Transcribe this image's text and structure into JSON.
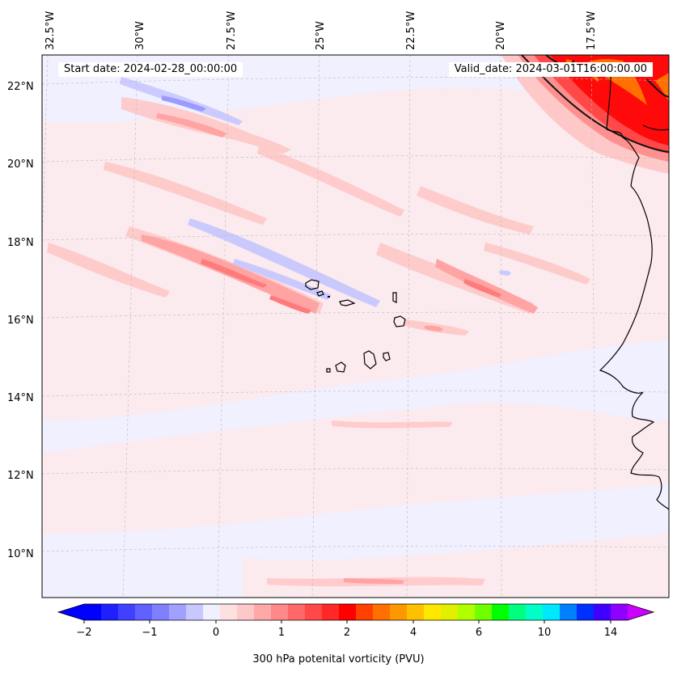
{
  "header": {
    "start_date": "Start date: 2024-02-28_00:00:00",
    "valid_date": "Valid_date: 2024-03-01T16:00:00.00"
  },
  "map": {
    "lon_labels": [
      "32.5°W",
      "30°W",
      "27.5°W",
      "25°W",
      "22.5°W",
      "20°W",
      "17.5°W"
    ],
    "lat_labels": [
      "22°N",
      "20°N",
      "18°N",
      "16°N",
      "14°N",
      "12°N",
      "10°N"
    ],
    "background_color": "#f0f0ff"
  },
  "colorbar": {
    "label": "300 hPa potenital vorticity (PVU)",
    "ticks": [
      "−2",
      "−1",
      "0",
      "1",
      "2",
      "4",
      "6",
      "10",
      "14"
    ],
    "colors": [
      "#0000ff",
      "#2020ff",
      "#4040ff",
      "#6060ff",
      "#8080ff",
      "#a0a0ff",
      "#c8c8ff",
      "#f0f0ff",
      "#ffe0e0",
      "#ffc8c8",
      "#ffa8a8",
      "#ff8888",
      "#ff6868",
      "#ff4848",
      "#ff2828",
      "#ff0000",
      "#ff4000",
      "#ff7000",
      "#ff9800",
      "#ffc000",
      "#ffe800",
      "#e0f000",
      "#b0ff00",
      "#70ff00",
      "#00ff00",
      "#00ff80",
      "#00ffc8",
      "#00e8ff",
      "#0080ff",
      "#0030ff",
      "#4000ff",
      "#9000ff"
    ],
    "extend_low_color": "#0000ff",
    "extend_high_color": "#cc00ff"
  }
}
